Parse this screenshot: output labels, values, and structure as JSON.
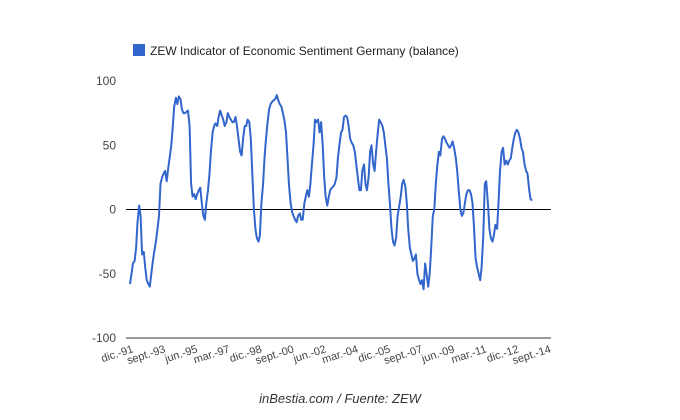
{
  "chart_data": {
    "type": "line",
    "title": "",
    "legend": [
      "ZEW Indicator of Economic Sentiment Germany (balance)"
    ],
    "legend_position": "top",
    "xlabel": "",
    "ylabel": "",
    "ylim": [
      -100,
      100
    ],
    "yticks": [
      -100,
      -50,
      0,
      50,
      100
    ],
    "grid": false,
    "zero_line": true,
    "colors": {
      "series": "#3366cc",
      "axis": "#333333",
      "zero": "#000000"
    },
    "x_range": [
      1991.92,
      2014.75
    ],
    "xticks": [
      {
        "label": "dic.-91",
        "x": 1991.92
      },
      {
        "label": "sept.-93",
        "x": 1993.67
      },
      {
        "label": "jun.-95",
        "x": 1995.42
      },
      {
        "label": "mar.-97",
        "x": 1997.17
      },
      {
        "label": "dic.-98",
        "x": 1998.92
      },
      {
        "label": "sept.-00",
        "x": 2000.67
      },
      {
        "label": "jun.-02",
        "x": 2002.42
      },
      {
        "label": "mar.-04",
        "x": 2004.17
      },
      {
        "label": "dic.-05",
        "x": 2005.92
      },
      {
        "label": "sept.-07",
        "x": 2007.67
      },
      {
        "label": "jun.-09",
        "x": 2009.42
      },
      {
        "label": "mar.-11",
        "x": 2011.17
      },
      {
        "label": "dic.-12",
        "x": 2012.92
      },
      {
        "label": "sept.-14",
        "x": 2014.67
      }
    ],
    "series": [
      {
        "name": "ZEW Indicator of Economic Sentiment Germany (balance)",
        "points": [
          [
            1991.92,
            -58
          ],
          [
            1992.0,
            -50
          ],
          [
            1992.08,
            -42
          ],
          [
            1992.17,
            -40
          ],
          [
            1992.25,
            -30
          ],
          [
            1992.33,
            -10
          ],
          [
            1992.42,
            3
          ],
          [
            1992.5,
            -5
          ],
          [
            1992.58,
            -35
          ],
          [
            1992.67,
            -33
          ],
          [
            1992.75,
            -45
          ],
          [
            1992.83,
            -55
          ],
          [
            1992.92,
            -58
          ],
          [
            1993.0,
            -60
          ],
          [
            1993.08,
            -50
          ],
          [
            1993.17,
            -40
          ],
          [
            1993.25,
            -32
          ],
          [
            1993.33,
            -25
          ],
          [
            1993.42,
            -15
          ],
          [
            1993.5,
            -5
          ],
          [
            1993.58,
            20
          ],
          [
            1993.67,
            25
          ],
          [
            1993.75,
            28
          ],
          [
            1993.83,
            30
          ],
          [
            1993.92,
            22
          ],
          [
            1994.0,
            32
          ],
          [
            1994.08,
            40
          ],
          [
            1994.17,
            50
          ],
          [
            1994.25,
            65
          ],
          [
            1994.33,
            80
          ],
          [
            1994.42,
            87
          ],
          [
            1994.5,
            82
          ],
          [
            1994.58,
            88
          ],
          [
            1994.67,
            86
          ],
          [
            1994.75,
            78
          ],
          [
            1994.83,
            75
          ],
          [
            1994.92,
            75
          ],
          [
            1995.0,
            76
          ],
          [
            1995.08,
            77
          ],
          [
            1995.17,
            65
          ],
          [
            1995.25,
            20
          ],
          [
            1995.33,
            10
          ],
          [
            1995.42,
            12
          ],
          [
            1995.5,
            8
          ],
          [
            1995.58,
            12
          ],
          [
            1995.67,
            15
          ],
          [
            1995.75,
            17
          ],
          [
            1995.83,
            5
          ],
          [
            1995.92,
            -5
          ],
          [
            1996.0,
            -8
          ],
          [
            1996.08,
            5
          ],
          [
            1996.17,
            15
          ],
          [
            1996.25,
            28
          ],
          [
            1996.33,
            45
          ],
          [
            1996.42,
            60
          ],
          [
            1996.5,
            65
          ],
          [
            1996.58,
            67
          ],
          [
            1996.67,
            65
          ],
          [
            1996.75,
            72
          ],
          [
            1996.83,
            77
          ],
          [
            1996.92,
            73
          ],
          [
            1997.0,
            70
          ],
          [
            1997.08,
            65
          ],
          [
            1997.17,
            68
          ],
          [
            1997.25,
            75
          ],
          [
            1997.33,
            72
          ],
          [
            1997.42,
            70
          ],
          [
            1997.5,
            68
          ],
          [
            1997.58,
            68
          ],
          [
            1997.67,
            72
          ],
          [
            1997.75,
            65
          ],
          [
            1997.83,
            55
          ],
          [
            1997.92,
            45
          ],
          [
            1998.0,
            42
          ],
          [
            1998.08,
            55
          ],
          [
            1998.17,
            65
          ],
          [
            1998.25,
            65
          ],
          [
            1998.33,
            70
          ],
          [
            1998.42,
            68
          ],
          [
            1998.5,
            55
          ],
          [
            1998.58,
            30
          ],
          [
            1998.67,
            0
          ],
          [
            1998.75,
            -15
          ],
          [
            1998.83,
            -22
          ],
          [
            1998.92,
            -25
          ],
          [
            1999.0,
            -20
          ],
          [
            1999.08,
            5
          ],
          [
            1999.17,
            20
          ],
          [
            1999.25,
            40
          ],
          [
            1999.33,
            55
          ],
          [
            1999.42,
            68
          ],
          [
            1999.5,
            78
          ],
          [
            1999.58,
            82
          ],
          [
            1999.67,
            84
          ],
          [
            1999.75,
            85
          ],
          [
            1999.83,
            86
          ],
          [
            1999.92,
            89
          ],
          [
            2000.0,
            85
          ],
          [
            2000.08,
            82
          ],
          [
            2000.17,
            80
          ],
          [
            2000.25,
            75
          ],
          [
            2000.33,
            70
          ],
          [
            2000.42,
            60
          ],
          [
            2000.5,
            40
          ],
          [
            2000.58,
            20
          ],
          [
            2000.67,
            5
          ],
          [
            2000.75,
            -2
          ],
          [
            2000.83,
            -5
          ],
          [
            2000.92,
            -8
          ],
          [
            2001.0,
            -10
          ],
          [
            2001.08,
            -5
          ],
          [
            2001.17,
            -3
          ],
          [
            2001.25,
            -8
          ],
          [
            2001.33,
            -8
          ],
          [
            2001.42,
            5
          ],
          [
            2001.5,
            10
          ],
          [
            2001.58,
            15
          ],
          [
            2001.67,
            10
          ],
          [
            2001.75,
            20
          ],
          [
            2001.83,
            35
          ],
          [
            2001.92,
            50
          ],
          [
            2002.0,
            70
          ],
          [
            2002.08,
            68
          ],
          [
            2002.17,
            70
          ],
          [
            2002.25,
            60
          ],
          [
            2002.33,
            68
          ],
          [
            2002.42,
            50
          ],
          [
            2002.5,
            25
          ],
          [
            2002.58,
            10
          ],
          [
            2002.67,
            3
          ],
          [
            2002.75,
            10
          ],
          [
            2002.83,
            15
          ],
          [
            2002.92,
            17
          ],
          [
            2003.0,
            18
          ],
          [
            2003.08,
            20
          ],
          [
            2003.17,
            25
          ],
          [
            2003.25,
            40
          ],
          [
            2003.33,
            50
          ],
          [
            2003.42,
            60
          ],
          [
            2003.5,
            62
          ],
          [
            2003.58,
            72
          ],
          [
            2003.67,
            73
          ],
          [
            2003.75,
            72
          ],
          [
            2003.83,
            65
          ],
          [
            2003.92,
            55
          ],
          [
            2004.0,
            52
          ],
          [
            2004.08,
            50
          ],
          [
            2004.17,
            45
          ],
          [
            2004.25,
            35
          ],
          [
            2004.33,
            25
          ],
          [
            2004.42,
            15
          ],
          [
            2004.5,
            15
          ],
          [
            2004.58,
            30
          ],
          [
            2004.67,
            35
          ],
          [
            2004.75,
            20
          ],
          [
            2004.83,
            15
          ],
          [
            2004.92,
            25
          ],
          [
            2005.0,
            45
          ],
          [
            2005.08,
            50
          ],
          [
            2005.17,
            35
          ],
          [
            2005.25,
            30
          ],
          [
            2005.33,
            45
          ],
          [
            2005.42,
            60
          ],
          [
            2005.5,
            70
          ],
          [
            2005.58,
            68
          ],
          [
            2005.67,
            65
          ],
          [
            2005.75,
            60
          ],
          [
            2005.83,
            50
          ],
          [
            2005.92,
            40
          ],
          [
            2006.0,
            20
          ],
          [
            2006.08,
            5
          ],
          [
            2006.17,
            -15
          ],
          [
            2006.25,
            -25
          ],
          [
            2006.33,
            -28
          ],
          [
            2006.42,
            -22
          ],
          [
            2006.5,
            -5
          ],
          [
            2006.58,
            2
          ],
          [
            2006.67,
            10
          ],
          [
            2006.75,
            20
          ],
          [
            2006.83,
            23
          ],
          [
            2006.92,
            18
          ],
          [
            2007.0,
            5
          ],
          [
            2007.08,
            -15
          ],
          [
            2007.17,
            -30
          ],
          [
            2007.25,
            -35
          ],
          [
            2007.33,
            -40
          ],
          [
            2007.42,
            -38
          ],
          [
            2007.5,
            -35
          ],
          [
            2007.58,
            -50
          ],
          [
            2007.67,
            -55
          ],
          [
            2007.75,
            -58
          ],
          [
            2007.83,
            -55
          ],
          [
            2007.92,
            -62
          ],
          [
            2008.0,
            -42
          ],
          [
            2008.08,
            -50
          ],
          [
            2008.17,
            -60
          ],
          [
            2008.25,
            -50
          ],
          [
            2008.33,
            -30
          ],
          [
            2008.42,
            -5
          ],
          [
            2008.5,
            0
          ],
          [
            2008.58,
            20
          ],
          [
            2008.67,
            35
          ],
          [
            2008.75,
            45
          ],
          [
            2008.83,
            42
          ],
          [
            2008.92,
            55
          ],
          [
            2009.0,
            57
          ],
          [
            2009.08,
            55
          ],
          [
            2009.17,
            52
          ],
          [
            2009.25,
            50
          ],
          [
            2009.33,
            48
          ],
          [
            2009.42,
            50
          ],
          [
            2009.5,
            53
          ],
          [
            2009.58,
            48
          ],
          [
            2009.67,
            40
          ],
          [
            2009.75,
            30
          ],
          [
            2009.83,
            15
          ],
          [
            2009.92,
            0
          ],
          [
            2010.0,
            -5
          ],
          [
            2010.08,
            -3
          ],
          [
            2010.17,
            5
          ],
          [
            2010.25,
            12
          ],
          [
            2010.33,
            15
          ],
          [
            2010.42,
            15
          ],
          [
            2010.5,
            12
          ],
          [
            2010.58,
            5
          ],
          [
            2010.67,
            -15
          ],
          [
            2010.75,
            -38
          ],
          [
            2010.83,
            -45
          ],
          [
            2010.92,
            -50
          ],
          [
            2011.0,
            -55
          ],
          [
            2011.08,
            -45
          ],
          [
            2011.17,
            -20
          ],
          [
            2011.25,
            20
          ],
          [
            2011.33,
            22
          ],
          [
            2011.42,
            5
          ],
          [
            2011.5,
            -15
          ],
          [
            2011.58,
            -22
          ],
          [
            2011.67,
            -25
          ],
          [
            2011.75,
            -20
          ],
          [
            2011.83,
            -12
          ],
          [
            2011.92,
            -15
          ],
          [
            2012.0,
            5
          ],
          [
            2012.08,
            30
          ],
          [
            2012.17,
            45
          ],
          [
            2012.25,
            48
          ],
          [
            2012.33,
            35
          ],
          [
            2012.42,
            38
          ],
          [
            2012.5,
            35
          ],
          [
            2012.58,
            38
          ],
          [
            2012.67,
            40
          ],
          [
            2012.75,
            48
          ],
          [
            2012.83,
            55
          ],
          [
            2012.92,
            60
          ],
          [
            2013.0,
            62
          ],
          [
            2013.08,
            60
          ],
          [
            2013.17,
            55
          ],
          [
            2013.25,
            48
          ],
          [
            2013.33,
            45
          ],
          [
            2013.42,
            35
          ],
          [
            2013.5,
            30
          ],
          [
            2013.58,
            28
          ],
          [
            2013.67,
            15
          ],
          [
            2013.75,
            8
          ],
          [
            2013.83,
            7
          ]
        ]
      }
    ]
  },
  "source_note": "inBestia.com / Fuente: ZEW"
}
